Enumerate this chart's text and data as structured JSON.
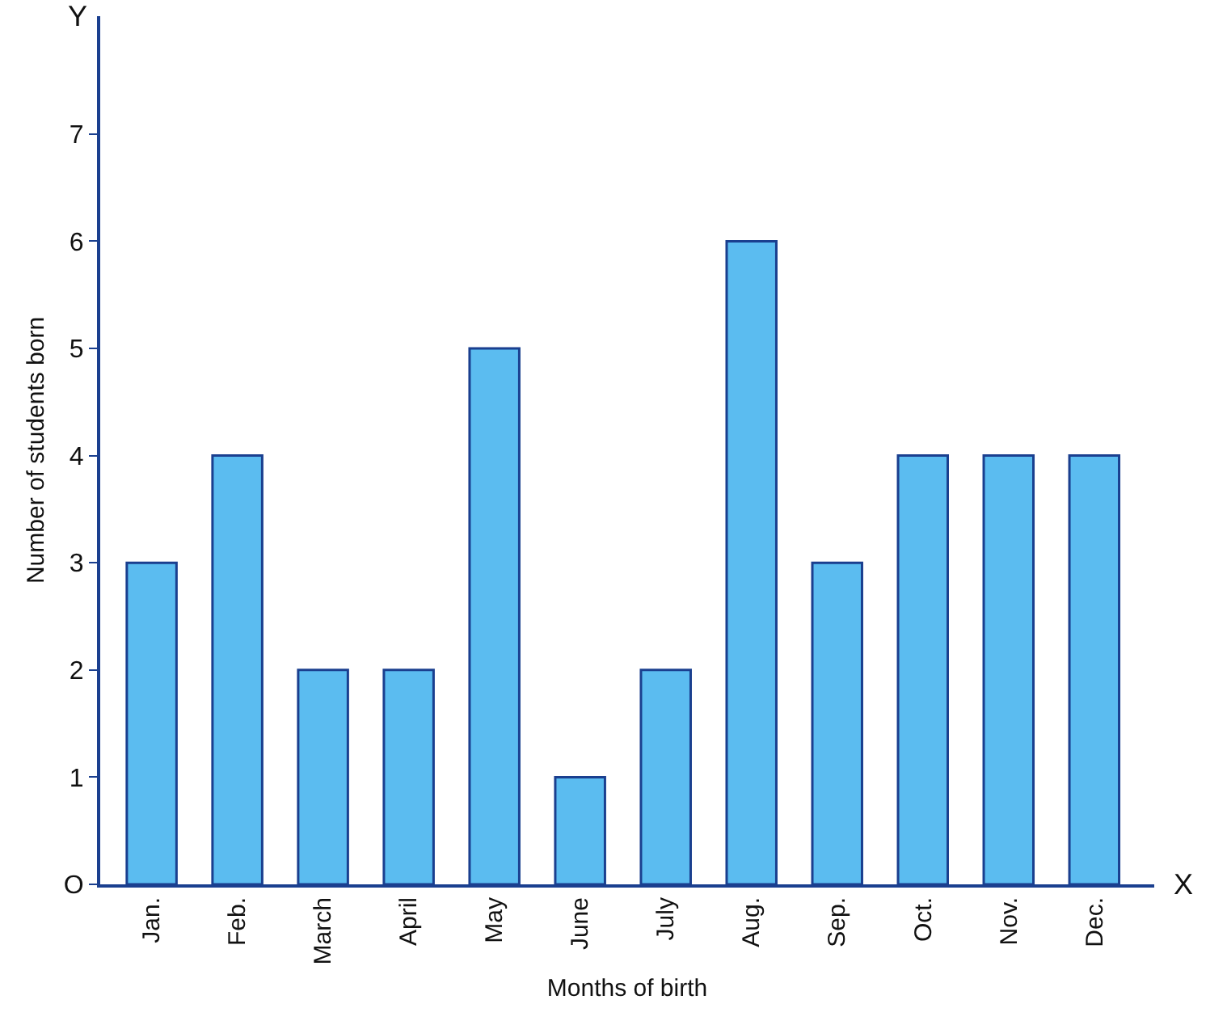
{
  "chart_data": {
    "type": "bar",
    "xlabel": "Months of birth",
    "ylabel": "Number of students born",
    "categories": [
      "Jan.",
      "Feb.",
      "March",
      "April",
      "May",
      "June",
      "July",
      "Aug.",
      "Sep.",
      "Oct.",
      "Nov.",
      "Dec."
    ],
    "values": [
      3,
      4,
      2,
      2,
      5,
      1,
      2,
      6,
      3,
      4,
      4,
      4
    ],
    "color": "#5bbcf0",
    "ylim": [
      0,
      8.1
    ],
    "yticks": [
      {
        "value": 0,
        "label": "O"
      },
      1,
      2,
      3,
      4,
      5,
      6,
      7
    ],
    "annotations": [
      "Y",
      "X"
    ]
  }
}
